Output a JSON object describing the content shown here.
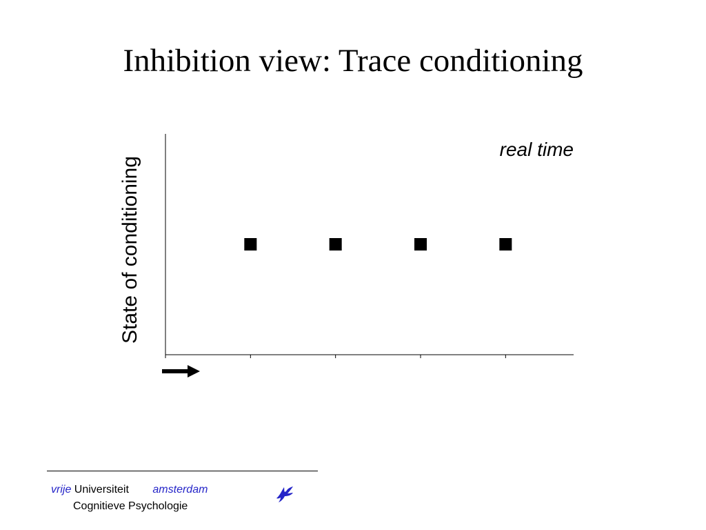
{
  "slide": {
    "title": "Inhibition view: Trace conditioning"
  },
  "chart_data": {
    "type": "scatter",
    "title": "",
    "xlabel": "real time",
    "ylabel": "State of conditioning",
    "x": [
      1,
      2,
      3,
      4
    ],
    "y": [
      0.5,
      0.5,
      0.5,
      0.5
    ],
    "xlim": [
      0,
      4.8
    ],
    "ylim": [
      0,
      1
    ],
    "x_ticks": [
      1,
      2,
      3,
      4
    ],
    "grid": false,
    "marker": "square",
    "marker_color": "#000000",
    "time_arrow": "right"
  },
  "footer": {
    "word1": "vrije",
    "word2": "Universiteit",
    "word3": "amsterdam",
    "line2": "Cognitieve Psychologie",
    "accent_color": "#2424c8",
    "logo_icon": "griffin-logo-icon"
  }
}
